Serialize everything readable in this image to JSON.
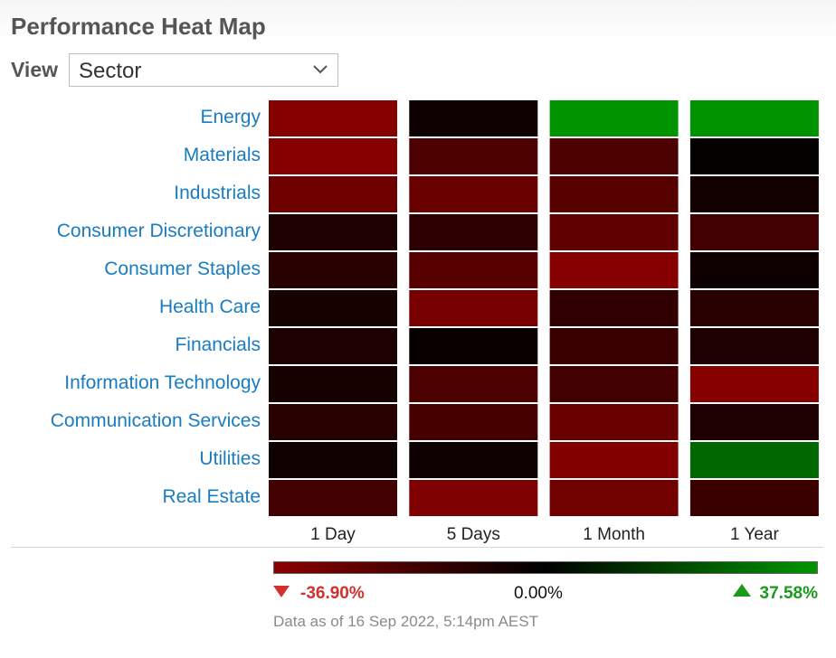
{
  "title": "Performance Heat Map",
  "view": {
    "label": "View",
    "selected": "Sector"
  },
  "chart_data": {
    "type": "heatmap",
    "rows": [
      "Energy",
      "Materials",
      "Industrials",
      "Consumer Discretionary",
      "Consumer Staples",
      "Health Care",
      "Financials",
      "Information Technology",
      "Communication Services",
      "Utilities",
      "Real Estate"
    ],
    "columns": [
      "1 Day",
      "5 Days",
      "1 Month",
      "1 Year"
    ],
    "values": [
      [
        -0.97,
        -0.1,
        1.0,
        1.0
      ],
      [
        -0.97,
        -0.55,
        -0.55,
        -0.02
      ],
      [
        -0.8,
        -0.75,
        -0.62,
        -0.14
      ],
      [
        -0.22,
        -0.32,
        -0.7,
        -0.48
      ],
      [
        -0.3,
        -0.62,
        -0.97,
        -0.1
      ],
      [
        -0.17,
        -0.88,
        -0.35,
        -0.3
      ],
      [
        -0.22,
        -0.06,
        -0.42,
        -0.22
      ],
      [
        -0.17,
        -0.55,
        -0.48,
        -0.97
      ],
      [
        -0.28,
        -0.5,
        -0.75,
        -0.22
      ],
      [
        -0.12,
        -0.1,
        -0.95,
        0.7
      ],
      [
        -0.48,
        -0.92,
        -0.82,
        -0.42
      ]
    ],
    "color_scale": {
      "negative": "#8a0000",
      "neutral": "#000000",
      "positive": "#009500"
    },
    "scale_min_label": "-36.90%",
    "scale_mid_label": "0.00%",
    "scale_max_label": "37.58%",
    "footnote": "Data as of 16 Sep 2022, 5:14pm AEST"
  }
}
